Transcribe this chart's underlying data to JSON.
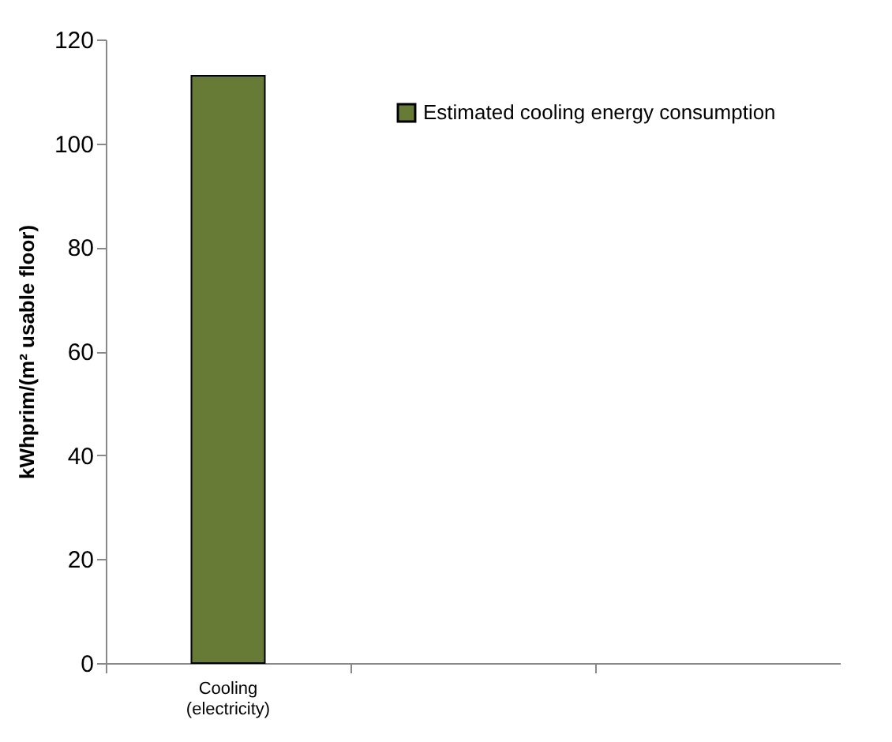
{
  "chart_data": {
    "type": "bar",
    "ylabel": "kWhprim/(m² usable floor)",
    "categories": [
      "Cooling (electricity)",
      null,
      null
    ],
    "series": [
      {
        "name": "Estimated cooling energy consumption",
        "color": "#677b36",
        "values": [
          113,
          null,
          null
        ]
      }
    ],
    "ylim": [
      0,
      120
    ],
    "yticks": [
      0,
      20,
      40,
      60,
      80,
      100,
      120
    ],
    "legend": "top right"
  }
}
